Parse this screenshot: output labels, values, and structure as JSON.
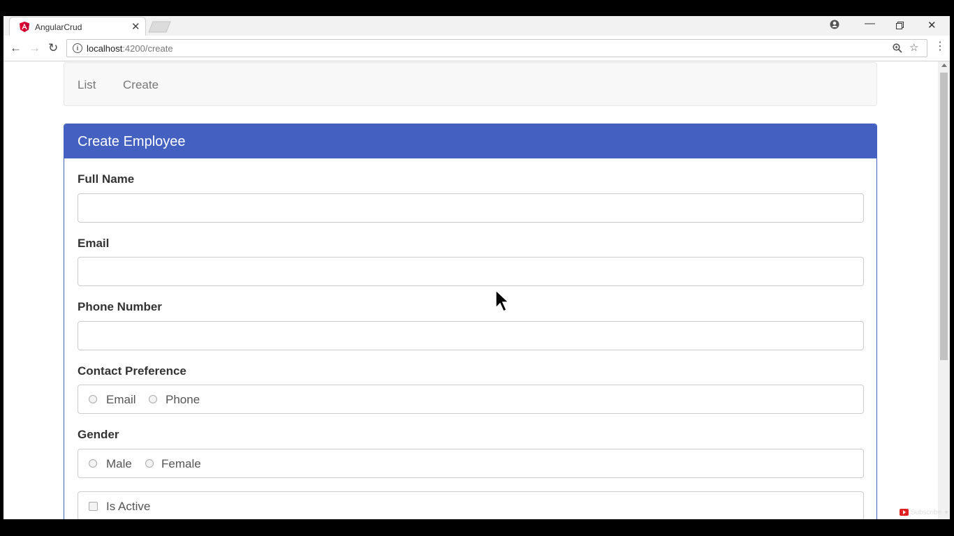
{
  "browser": {
    "tab_title": "AngularCrud",
    "url_host": "localhost",
    "url_path": ":4200/create"
  },
  "nav": {
    "list_label": "List",
    "create_label": "Create"
  },
  "panel": {
    "title": "Create Employee",
    "accent_color": "#4461c1"
  },
  "form": {
    "full_name_label": "Full Name",
    "email_label": "Email",
    "phone_label": "Phone Number",
    "contact_pref_label": "Contact Preference",
    "contact_options": [
      "Email",
      "Phone"
    ],
    "gender_label": "Gender",
    "gender_options": [
      "Male",
      "Female"
    ],
    "is_active_label": "Is Active"
  },
  "overlay": {
    "subscribe_label": "Subscribe"
  }
}
